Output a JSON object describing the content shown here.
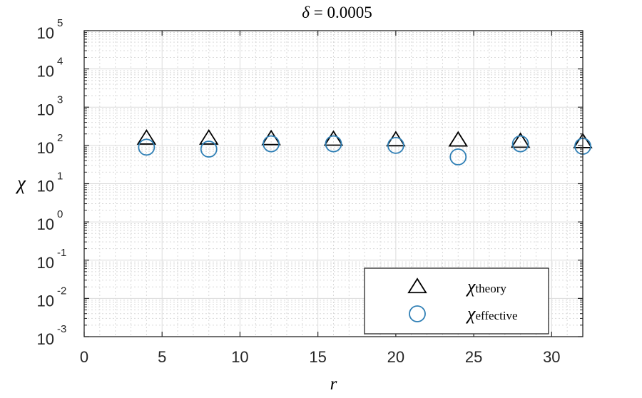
{
  "chart_data": {
    "type": "scatter",
    "title": "δ = 0.0005",
    "title_var": "δ",
    "title_eq": "= 0.0005",
    "xlabel": "r",
    "ylabel": "χ",
    "x_scale": "linear",
    "y_scale": "log",
    "xlim": [
      0,
      32
    ],
    "ylim": [
      0.001,
      100000
    ],
    "x_ticks": [
      0,
      5,
      10,
      15,
      20,
      25,
      30
    ],
    "x_tick_labels": [
      "0",
      "5",
      "10",
      "15",
      "20",
      "25",
      "30"
    ],
    "y_ticks": [
      {
        "base": "10",
        "exp": "-3",
        "value": 0.001
      },
      {
        "base": "10",
        "exp": "-2",
        "value": 0.01
      },
      {
        "base": "10",
        "exp": "-1",
        "value": 0.1
      },
      {
        "base": "10",
        "exp": "0",
        "value": 1
      },
      {
        "base": "10",
        "exp": "1",
        "value": 10
      },
      {
        "base": "10",
        "exp": "2",
        "value": 100
      },
      {
        "base": "10",
        "exp": "3",
        "value": 1000
      },
      {
        "base": "10",
        "exp": "4",
        "value": 10000
      },
      {
        "base": "10",
        "exp": "5",
        "value": 100000
      }
    ],
    "grid": true,
    "minor_grid": true,
    "legend_position": "bottom-right",
    "series": [
      {
        "name": "χtheory",
        "symbol": "χ",
        "subscript": "theory",
        "marker": "triangle",
        "color": "#000000",
        "x": [
          4,
          8,
          12,
          16,
          20,
          24,
          28,
          32
        ],
        "y": [
          155,
          155,
          150,
          145,
          140,
          138,
          128,
          125
        ]
      },
      {
        "name": "χeffective",
        "symbol": "χ",
        "subscript": "effective",
        "marker": "circle",
        "color": "#2f7fb5",
        "x": [
          4,
          8,
          12,
          16,
          20,
          24,
          28,
          32
        ],
        "y": [
          90,
          80,
          110,
          110,
          100,
          50,
          110,
          95
        ]
      }
    ]
  }
}
